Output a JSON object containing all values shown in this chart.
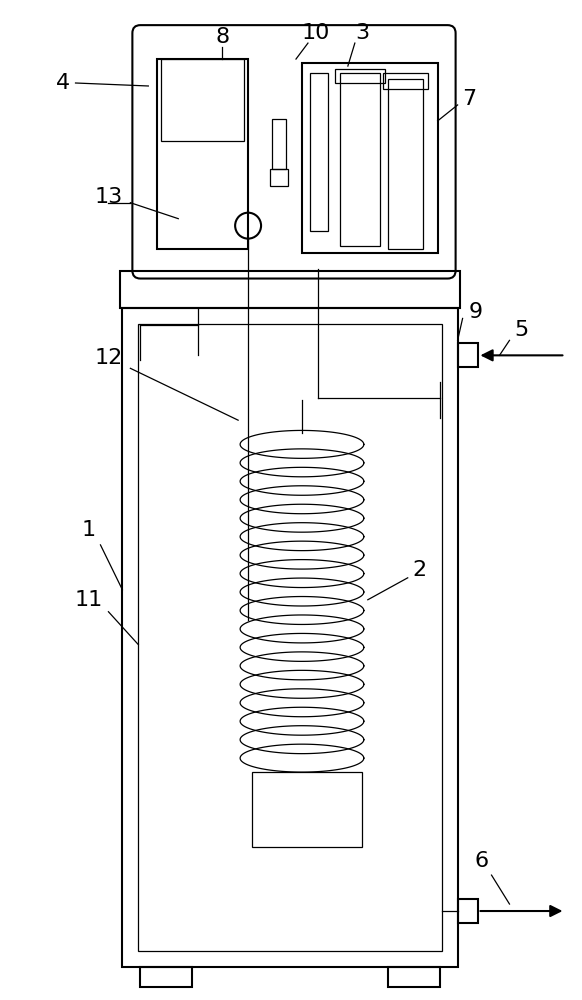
{
  "fig_width": 5.82,
  "fig_height": 10.0,
  "dpi": 100,
  "line_color": "#000000",
  "line_width": 1.5,
  "thin_line": 0.9,
  "bg_color": "#ffffff"
}
